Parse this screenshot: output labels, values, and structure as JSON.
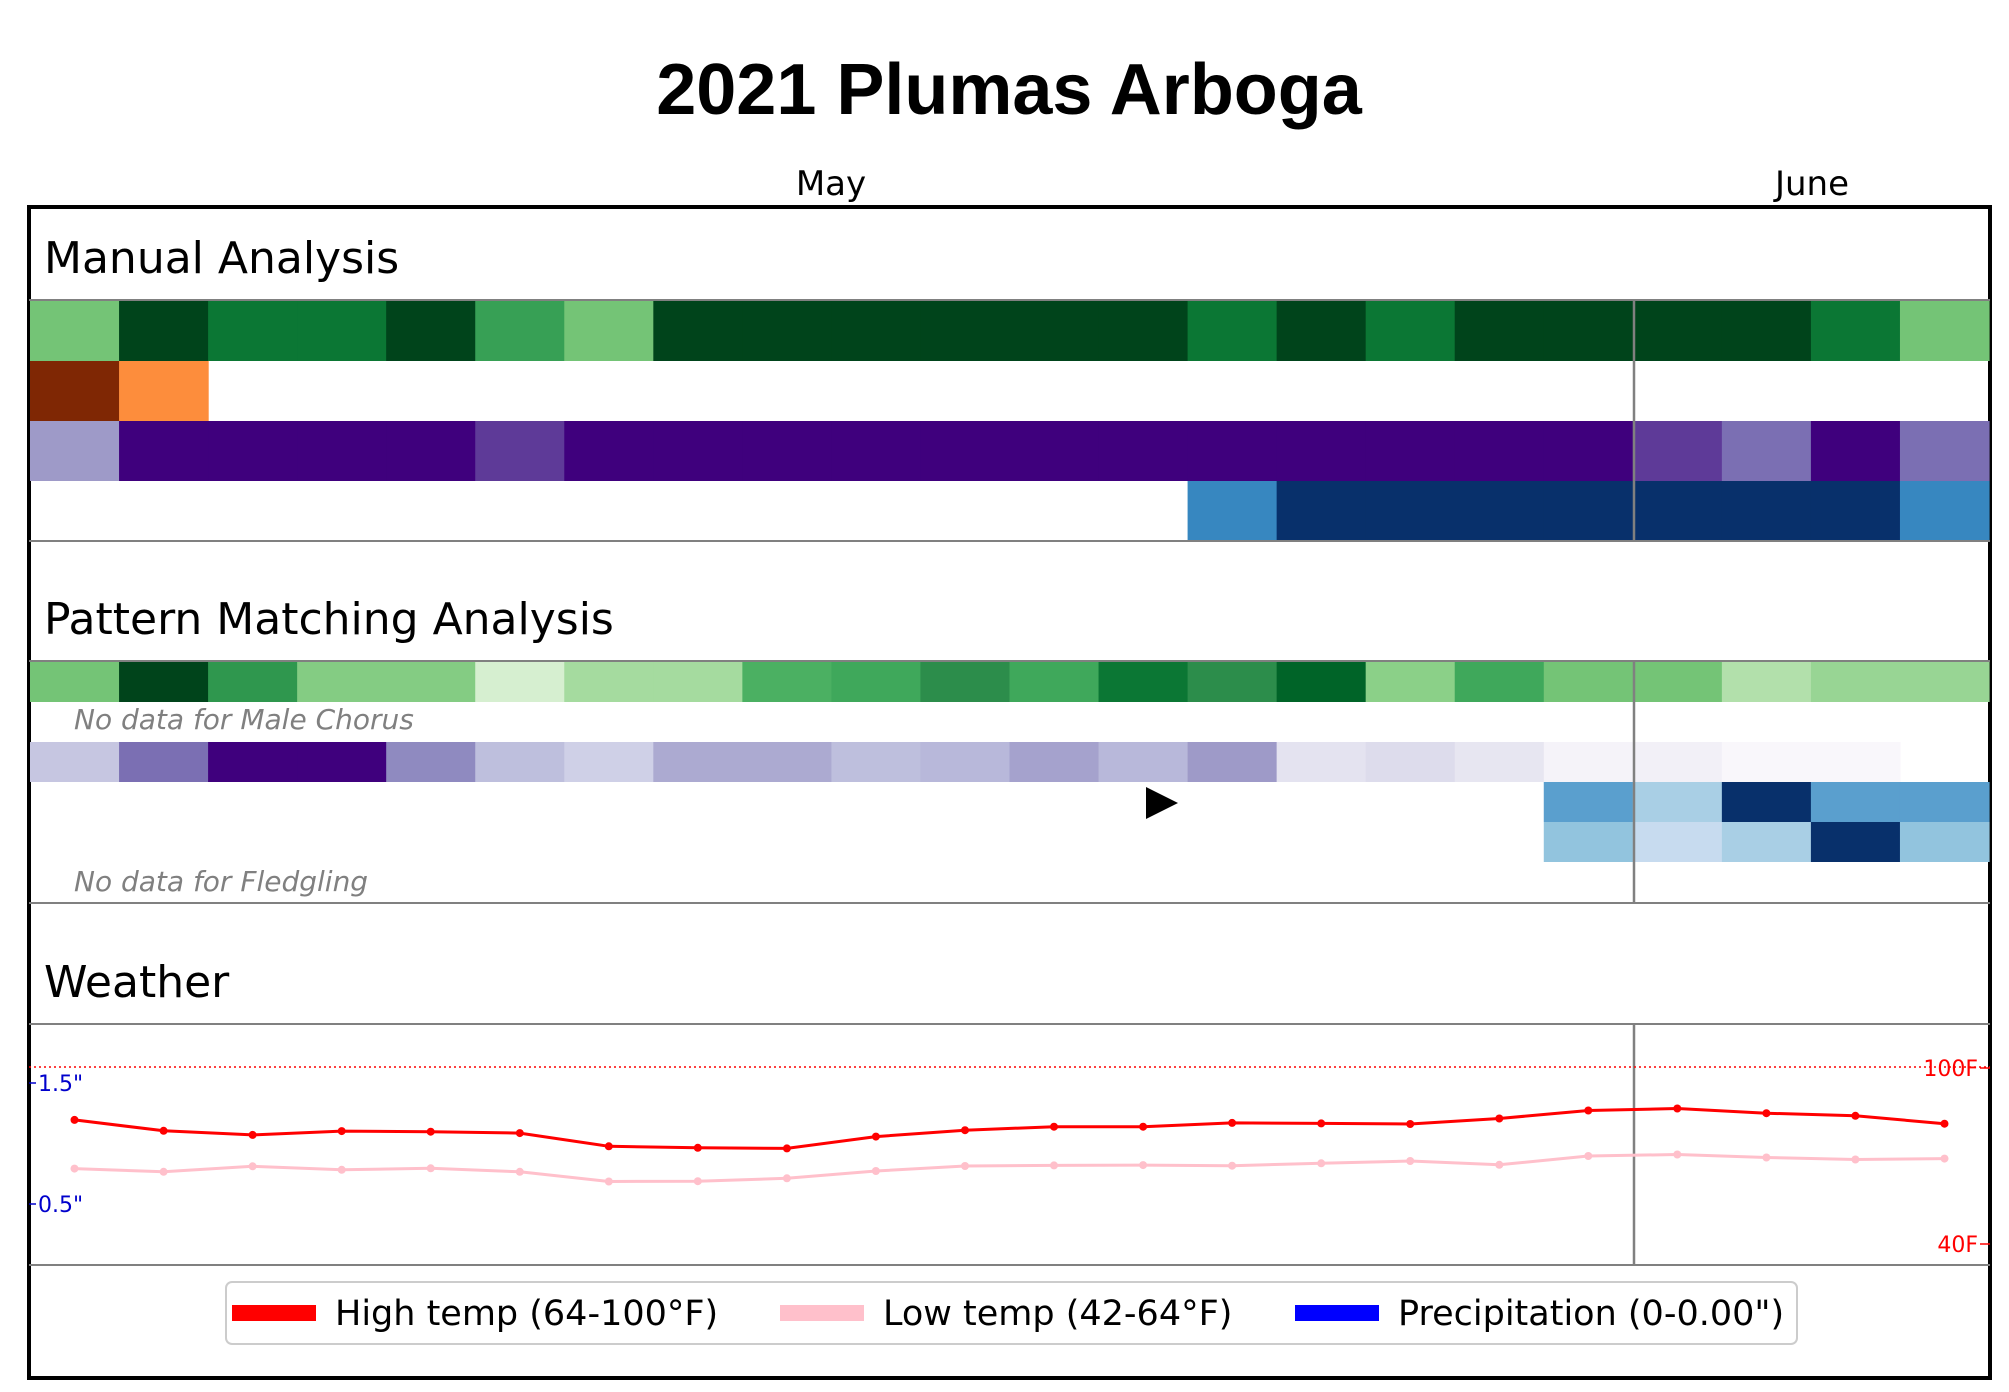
{
  "chart_data": {
    "type": "heatmap",
    "title": "2021 Plumas Arboga",
    "months": [
      "May",
      "June"
    ],
    "days": 22,
    "sections": [
      {
        "name": "Manual Analysis",
        "rows": [
          {
            "colors": [
              "#74c476",
              "#00441b",
              "#0b7734",
              "#0b7734",
              "#00441b",
              "#37a055",
              "#74c476",
              "#00441b",
              "#00441b",
              "#00441b",
              "#00441b",
              "#00441b",
              "#00441b",
              "#0b7734",
              "#00441b",
              "#0b7734",
              "#00441b",
              "#00441b",
              "#00441b",
              "#00441b",
              "#0b7734",
              "#74c476"
            ]
          },
          {
            "colors": [
              "#7f2704",
              "#fd8d3c",
              null,
              null,
              null,
              null,
              null,
              null,
              null,
              null,
              null,
              null,
              null,
              null,
              null,
              null,
              null,
              null,
              null,
              null,
              null,
              null
            ]
          },
          {
            "colors": [
              "#9e9ac8",
              "#3f007d",
              "#3f007d",
              "#3f007d",
              "#3f007d",
              "#5e3a98",
              "#3f007d",
              "#3f007d",
              "#3f007d",
              "#3f007d",
              "#3f007d",
              "#3f007d",
              "#3f007d",
              "#3f007d",
              "#3f007d",
              "#3f007d",
              "#3f007d",
              "#3f007d",
              "#5e3a98",
              "#7b6fb3",
              "#3f007d",
              "#7b6fb3"
            ]
          },
          {
            "colors": [
              null,
              null,
              null,
              null,
              null,
              null,
              null,
              null,
              null,
              null,
              null,
              null,
              null,
              "#3787c0",
              "#08306b",
              "#08306b",
              "#08306b",
              "#08306b",
              "#08306b",
              "#08306b",
              "#08306b",
              "#3787c0"
            ]
          }
        ]
      },
      {
        "name": "Pattern Matching Analysis",
        "rows": [
          {
            "colors": [
              "#74c476",
              "#00441b",
              "#2f974e",
              "#84cc83",
              "#84cc83",
              "#d6efd0",
              "#a5db9f",
              "#a5db9f",
              "#4bb062",
              "#3fa85b",
              "#2c8d4b",
              "#3fa85b",
              "#0b7734",
              "#2c8d4b",
              "#006428",
              "#8bd088",
              "#3fa85b",
              "#74c476",
              "#74c476",
              "#b2e0ab",
              "#98d594",
              "#98d594"
            ]
          },
          {
            "nodata": "No data for Male Chorus"
          },
          {
            "colors": [
              "#c6c6e1",
              "#7b6fb3",
              "#3f007d",
              "#3f007d",
              "#8f8ac0",
              "#bebfdd",
              "#cfd0e7",
              "#acaad1",
              "#acaad1",
              "#bebfdd",
              "#b8b8da",
              "#a5a2cd",
              "#b8b8da",
              "#9e9ac8",
              "#e4e3f0",
              "#dddcec",
              "#e7e6f1",
              "#f5f3f9",
              "#f2f0f7",
              "#f9f7fb",
              "#f9f7fb",
              null
            ]
          },
          {
            "colors": [
              null,
              null,
              null,
              null,
              null,
              null,
              null,
              null,
              null,
              null,
              null,
              null,
              null,
              null,
              null,
              null,
              null,
              "#5a9fce",
              "#a9cfe5",
              "#08306b",
              "#5a9fce",
              "#5a9fce"
            ]
          },
          {
            "colors": [
              null,
              null,
              null,
              null,
              null,
              null,
              null,
              null,
              null,
              null,
              null,
              null,
              null,
              null,
              null,
              null,
              null,
              "#92c4de",
              "#c7dbef",
              "#a9cfe5",
              "#08306b",
              "#92c4de"
            ]
          },
          {
            "nodata": "No data for Fledgling"
          }
        ]
      },
      {
        "name": "Weather"
      }
    ],
    "series": [
      {
        "name": "High temp (64-100°F)",
        "color": "#ff0000",
        "values": [
          82.3,
          78.6,
          77.2,
          78.5,
          78.3,
          77.8,
          73.3,
          72.8,
          72.6,
          76.6,
          78.8,
          80.0,
          80.0,
          81.3,
          81.1,
          80.9,
          82.8,
          85.5,
          86.2,
          84.6,
          83.7,
          81.0
        ]
      },
      {
        "name": "Low temp (42-64°F)",
        "color": "#ffc0cb",
        "values": [
          65.7,
          64.6,
          66.5,
          65.3,
          65.8,
          64.6,
          61.3,
          61.4,
          62.4,
          64.9,
          66.6,
          66.8,
          66.9,
          66.7,
          67.5,
          68.3,
          67.0,
          70.0,
          70.5,
          69.5,
          68.8,
          69.1
        ]
      },
      {
        "name": "Precipitation (0-0.00\")",
        "color": "#0000ff",
        "values": []
      }
    ],
    "temp_range": [
      40,
      100
    ],
    "temp_labels": [
      "100F",
      "40F"
    ],
    "precip_labels": [
      "1.5\"",
      "0.5\""
    ],
    "legend": {
      "placement": "bottom"
    }
  },
  "colors": {
    "high": "#ff0000",
    "low": "#ffc0cb",
    "precip_axis": "#0000cc",
    "divider": "#808080"
  }
}
